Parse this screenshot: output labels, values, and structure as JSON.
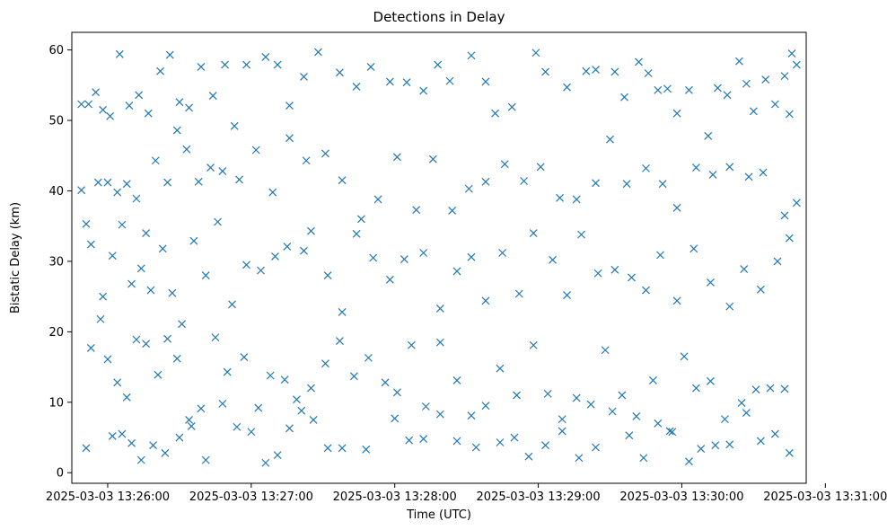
{
  "chart_data": {
    "type": "scatter",
    "title": "Detections in Delay",
    "xlabel": "Time (UTC)",
    "ylabel": "Bistatic Delay (km)",
    "x_type": "datetime",
    "xlim": [
      "2025-03-03 13:25:45",
      "2025-03-03 13:30:52"
    ],
    "ylim": [
      -1.5,
      62.5
    ],
    "x_ticks": [
      {
        "value": "2025-03-03 13:26:00",
        "label": "2025-03-03 13:26:00"
      },
      {
        "value": "2025-03-03 13:27:00",
        "label": "2025-03-03 13:27:00"
      },
      {
        "value": "2025-03-03 13:28:00",
        "label": "2025-03-03 13:28:00"
      },
      {
        "value": "2025-03-03 13:29:00",
        "label": "2025-03-03 13:29:00"
      },
      {
        "value": "2025-03-03 13:30:00",
        "label": "2025-03-03 13:30:00"
      },
      {
        "value": "2025-03-03 13:31:00",
        "label": "2025-03-03 13:31:00"
      }
    ],
    "y_ticks": [
      0,
      10,
      20,
      30,
      40,
      50,
      60
    ],
    "grid": false,
    "legend": false,
    "marker": "x",
    "color": "#1f77b4",
    "points": [
      [
        "2025-03-03 13:25:49",
        52.3
      ],
      [
        "2025-03-03 13:25:52",
        52.3
      ],
      [
        "2025-03-03 13:25:55",
        54.0
      ],
      [
        "2025-03-03 13:25:58",
        51.5
      ],
      [
        "2025-03-03 13:26:01",
        50.6
      ],
      [
        "2025-03-03 13:26:05",
        59.4
      ],
      [
        "2025-03-03 13:26:09",
        52.1
      ],
      [
        "2025-03-03 13:26:13",
        53.6
      ],
      [
        "2025-03-03 13:26:17",
        51.0
      ],
      [
        "2025-03-03 13:26:22",
        57.0
      ],
      [
        "2025-03-03 13:26:26",
        59.3
      ],
      [
        "2025-03-03 13:26:30",
        52.6
      ],
      [
        "2025-03-03 13:26:34",
        51.8
      ],
      [
        "2025-03-03 13:26:39",
        57.6
      ],
      [
        "2025-03-03 13:26:44",
        53.5
      ],
      [
        "2025-03-03 13:26:49",
        57.9
      ],
      [
        "2025-03-03 13:26:53",
        49.2
      ],
      [
        "2025-03-03 13:26:58",
        57.9
      ],
      [
        "2025-03-03 13:27:06",
        59.0
      ],
      [
        "2025-03-03 13:27:11",
        57.9
      ],
      [
        "2025-03-03 13:27:16",
        52.1
      ],
      [
        "2025-03-03 13:27:22",
        56.2
      ],
      [
        "2025-03-03 13:27:28",
        59.7
      ],
      [
        "2025-03-03 13:27:37",
        56.8
      ],
      [
        "2025-03-03 13:27:44",
        54.8
      ],
      [
        "2025-03-03 13:27:50",
        57.6
      ],
      [
        "2025-03-03 13:27:58",
        55.5
      ],
      [
        "2025-03-03 13:28:05",
        55.4
      ],
      [
        "2025-03-03 13:28:12",
        54.2
      ],
      [
        "2025-03-03 13:28:18",
        57.9
      ],
      [
        "2025-03-03 13:28:23",
        55.6
      ],
      [
        "2025-03-03 13:28:32",
        59.2
      ],
      [
        "2025-03-03 13:28:38",
        55.5
      ],
      [
        "2025-03-03 13:28:42",
        51.0
      ],
      [
        "2025-03-03 13:28:49",
        51.9
      ],
      [
        "2025-03-03 13:28:59",
        59.6
      ],
      [
        "2025-03-03 13:29:03",
        56.9
      ],
      [
        "2025-03-03 13:29:12",
        54.7
      ],
      [
        "2025-03-03 13:29:20",
        57.0
      ],
      [
        "2025-03-03 13:29:24",
        57.2
      ],
      [
        "2025-03-03 13:29:32",
        56.9
      ],
      [
        "2025-03-03 13:29:36",
        53.3
      ],
      [
        "2025-03-03 13:29:42",
        58.3
      ],
      [
        "2025-03-03 13:29:46",
        56.7
      ],
      [
        "2025-03-03 13:29:50",
        54.3
      ],
      [
        "2025-03-03 13:29:54",
        54.5
      ],
      [
        "2025-03-03 13:29:58",
        51.0
      ],
      [
        "2025-03-03 13:30:03",
        54.3
      ],
      [
        "2025-03-03 13:30:11",
        47.8
      ],
      [
        "2025-03-03 13:30:15",
        54.6
      ],
      [
        "2025-03-03 13:30:19",
        53.6
      ],
      [
        "2025-03-03 13:30:24",
        58.4
      ],
      [
        "2025-03-03 13:30:27",
        55.2
      ],
      [
        "2025-03-03 13:30:30",
        51.3
      ],
      [
        "2025-03-03 13:30:35",
        55.8
      ],
      [
        "2025-03-03 13:30:39",
        52.3
      ],
      [
        "2025-03-03 13:30:43",
        56.3
      ],
      [
        "2025-03-03 13:30:46",
        59.5
      ],
      [
        "2025-03-03 13:30:48",
        57.9
      ],
      [
        "2025-03-03 13:30:45",
        50.9
      ],
      [
        "2025-03-03 13:25:49",
        40.1
      ],
      [
        "2025-03-03 13:25:53",
        32.4
      ],
      [
        "2025-03-03 13:25:56",
        41.2
      ],
      [
        "2025-03-03 13:26:00",
        41.2
      ],
      [
        "2025-03-03 13:26:04",
        39.8
      ],
      [
        "2025-03-03 13:26:08",
        41.0
      ],
      [
        "2025-03-03 13:26:12",
        38.9
      ],
      [
        "2025-03-03 13:26:16",
        34.0
      ],
      [
        "2025-03-03 13:26:20",
        44.3
      ],
      [
        "2025-03-03 13:26:25",
        41.2
      ],
      [
        "2025-03-03 13:26:29",
        48.6
      ],
      [
        "2025-03-03 13:26:33",
        45.9
      ],
      [
        "2025-03-03 13:26:38",
        41.3
      ],
      [
        "2025-03-03 13:26:43",
        43.3
      ],
      [
        "2025-03-03 13:26:48",
        42.8
      ],
      [
        "2025-03-03 13:26:55",
        41.6
      ],
      [
        "2025-03-03 13:27:02",
        45.8
      ],
      [
        "2025-03-03 13:27:09",
        39.8
      ],
      [
        "2025-03-03 13:27:16",
        47.5
      ],
      [
        "2025-03-03 13:27:23",
        44.3
      ],
      [
        "2025-03-03 13:27:31",
        45.3
      ],
      [
        "2025-03-03 13:27:38",
        41.5
      ],
      [
        "2025-03-03 13:27:46",
        36.0
      ],
      [
        "2025-03-03 13:27:53",
        38.8
      ],
      [
        "2025-03-03 13:28:01",
        44.8
      ],
      [
        "2025-03-03 13:28:09",
        37.3
      ],
      [
        "2025-03-03 13:28:16",
        44.5
      ],
      [
        "2025-03-03 13:28:24",
        37.2
      ],
      [
        "2025-03-03 13:28:31",
        40.3
      ],
      [
        "2025-03-03 13:28:38",
        41.3
      ],
      [
        "2025-03-03 13:28:46",
        43.8
      ],
      [
        "2025-03-03 13:28:54",
        41.4
      ],
      [
        "2025-03-03 13:29:01",
        43.4
      ],
      [
        "2025-03-03 13:29:09",
        39.0
      ],
      [
        "2025-03-03 13:29:16",
        38.8
      ],
      [
        "2025-03-03 13:29:24",
        41.1
      ],
      [
        "2025-03-03 13:29:30",
        47.3
      ],
      [
        "2025-03-03 13:29:37",
        41.0
      ],
      [
        "2025-03-03 13:29:45",
        43.2
      ],
      [
        "2025-03-03 13:29:52",
        41.0
      ],
      [
        "2025-03-03 13:29:58",
        37.6
      ],
      [
        "2025-03-03 13:30:06",
        43.3
      ],
      [
        "2025-03-03 13:30:13",
        42.3
      ],
      [
        "2025-03-03 13:30:20",
        43.4
      ],
      [
        "2025-03-03 13:30:28",
        42.0
      ],
      [
        "2025-03-03 13:30:34",
        42.6
      ],
      [
        "2025-03-03 13:30:43",
        36.5
      ],
      [
        "2025-03-03 13:30:48",
        38.3
      ],
      [
        "2025-03-03 13:25:51",
        35.3
      ],
      [
        "2025-03-03 13:25:58",
        25.0
      ],
      [
        "2025-03-03 13:26:02",
        30.8
      ],
      [
        "2025-03-03 13:26:06",
        35.2
      ],
      [
        "2025-03-03 13:26:10",
        26.8
      ],
      [
        "2025-03-03 13:26:14",
        29.0
      ],
      [
        "2025-03-03 13:26:18",
        25.9
      ],
      [
        "2025-03-03 13:26:23",
        31.8
      ],
      [
        "2025-03-03 13:26:27",
        25.5
      ],
      [
        "2025-03-03 13:26:31",
        21.1
      ],
      [
        "2025-03-03 13:26:36",
        32.9
      ],
      [
        "2025-03-03 13:26:41",
        28.0
      ],
      [
        "2025-03-03 13:26:46",
        35.6
      ],
      [
        "2025-03-03 13:26:52",
        23.9
      ],
      [
        "2025-03-03 13:26:58",
        29.5
      ],
      [
        "2025-03-03 13:27:04",
        28.7
      ],
      [
        "2025-03-03 13:27:10",
        30.7
      ],
      [
        "2025-03-03 13:27:15",
        32.1
      ],
      [
        "2025-03-03 13:27:22",
        31.5
      ],
      [
        "2025-03-03 13:27:25",
        34.3
      ],
      [
        "2025-03-03 13:27:32",
        28.0
      ],
      [
        "2025-03-03 13:27:38",
        22.8
      ],
      [
        "2025-03-03 13:27:44",
        33.9
      ],
      [
        "2025-03-03 13:27:51",
        30.5
      ],
      [
        "2025-03-03 13:27:58",
        27.4
      ],
      [
        "2025-03-03 13:28:04",
        30.3
      ],
      [
        "2025-03-03 13:28:12",
        31.2
      ],
      [
        "2025-03-03 13:28:19",
        23.3
      ],
      [
        "2025-03-03 13:28:26",
        28.6
      ],
      [
        "2025-03-03 13:28:32",
        30.6
      ],
      [
        "2025-03-03 13:28:38",
        24.4
      ],
      [
        "2025-03-03 13:28:45",
        31.2
      ],
      [
        "2025-03-03 13:28:52",
        25.4
      ],
      [
        "2025-03-03 13:28:58",
        34.0
      ],
      [
        "2025-03-03 13:29:06",
        30.2
      ],
      [
        "2025-03-03 13:29:12",
        25.2
      ],
      [
        "2025-03-03 13:29:18",
        33.8
      ],
      [
        "2025-03-03 13:29:25",
        28.3
      ],
      [
        "2025-03-03 13:29:32",
        28.8
      ],
      [
        "2025-03-03 13:29:39",
        27.7
      ],
      [
        "2025-03-03 13:29:45",
        25.9
      ],
      [
        "2025-03-03 13:29:51",
        30.9
      ],
      [
        "2025-03-03 13:29:58",
        24.4
      ],
      [
        "2025-03-03 13:30:05",
        31.8
      ],
      [
        "2025-03-03 13:30:12",
        27.0
      ],
      [
        "2025-03-03 13:30:20",
        23.6
      ],
      [
        "2025-03-03 13:30:26",
        28.9
      ],
      [
        "2025-03-03 13:30:33",
        26.0
      ],
      [
        "2025-03-03 13:30:40",
        30.0
      ],
      [
        "2025-03-03 13:30:45",
        33.3
      ],
      [
        "2025-03-03 13:25:53",
        17.7
      ],
      [
        "2025-03-03 13:25:57",
        21.8
      ],
      [
        "2025-03-03 13:26:00",
        16.1
      ],
      [
        "2025-03-03 13:26:04",
        12.8
      ],
      [
        "2025-03-03 13:26:08",
        10.7
      ],
      [
        "2025-03-03 13:26:12",
        18.9
      ],
      [
        "2025-03-03 13:26:16",
        18.3
      ],
      [
        "2025-03-03 13:26:21",
        13.9
      ],
      [
        "2025-03-03 13:26:25",
        19.0
      ],
      [
        "2025-03-03 13:26:29",
        16.2
      ],
      [
        "2025-03-03 13:26:34",
        7.5
      ],
      [
        "2025-03-03 13:26:39",
        9.1
      ],
      [
        "2025-03-03 13:26:45",
        19.2
      ],
      [
        "2025-03-03 13:26:50",
        14.3
      ],
      [
        "2025-03-03 13:26:57",
        16.4
      ],
      [
        "2025-03-03 13:27:03",
        9.2
      ],
      [
        "2025-03-03 13:27:08",
        13.8
      ],
      [
        "2025-03-03 13:27:14",
        13.2
      ],
      [
        "2025-03-03 13:27:19",
        10.4
      ],
      [
        "2025-03-03 13:27:25",
        12.0
      ],
      [
        "2025-03-03 13:27:31",
        15.5
      ],
      [
        "2025-03-03 13:27:37",
        18.7
      ],
      [
        "2025-03-03 13:27:43",
        13.7
      ],
      [
        "2025-03-03 13:27:49",
        16.3
      ],
      [
        "2025-03-03 13:27:56",
        12.8
      ],
      [
        "2025-03-03 13:28:01",
        11.4
      ],
      [
        "2025-03-03 13:28:07",
        18.1
      ],
      [
        "2025-03-03 13:28:13",
        9.4
      ],
      [
        "2025-03-03 13:28:19",
        18.5
      ],
      [
        "2025-03-03 13:28:26",
        13.1
      ],
      [
        "2025-03-03 13:28:32",
        8.1
      ],
      [
        "2025-03-03 13:28:38",
        9.5
      ],
      [
        "2025-03-03 13:28:44",
        14.8
      ],
      [
        "2025-03-03 13:28:51",
        11.0
      ],
      [
        "2025-03-03 13:28:58",
        18.1
      ],
      [
        "2025-03-03 13:29:04",
        11.2
      ],
      [
        "2025-03-03 13:29:10",
        7.6
      ],
      [
        "2025-03-03 13:29:16",
        10.6
      ],
      [
        "2025-03-03 13:29:22",
        9.7
      ],
      [
        "2025-03-03 13:29:28",
        17.4
      ],
      [
        "2025-03-03 13:29:35",
        11.0
      ],
      [
        "2025-03-03 13:29:41",
        8.0
      ],
      [
        "2025-03-03 13:29:48",
        13.1
      ],
      [
        "2025-03-03 13:29:55",
        5.9
      ],
      [
        "2025-03-03 13:30:01",
        16.5
      ],
      [
        "2025-03-03 13:30:06",
        12.0
      ],
      [
        "2025-03-03 13:30:12",
        13.0
      ],
      [
        "2025-03-03 13:30:18",
        7.6
      ],
      [
        "2025-03-03 13:30:25",
        9.9
      ],
      [
        "2025-03-03 13:30:31",
        11.8
      ],
      [
        "2025-03-03 13:30:37",
        12.0
      ],
      [
        "2025-03-03 13:30:43",
        11.9
      ],
      [
        "2025-03-03 13:25:51",
        3.5
      ],
      [
        "2025-03-03 13:26:02",
        5.2
      ],
      [
        "2025-03-03 13:26:06",
        5.5
      ],
      [
        "2025-03-03 13:26:10",
        4.2
      ],
      [
        "2025-03-03 13:26:14",
        1.8
      ],
      [
        "2025-03-03 13:26:19",
        3.9
      ],
      [
        "2025-03-03 13:26:24",
        2.8
      ],
      [
        "2025-03-03 13:26:30",
        5.0
      ],
      [
        "2025-03-03 13:26:35",
        6.6
      ],
      [
        "2025-03-03 13:26:41",
        1.8
      ],
      [
        "2025-03-03 13:26:48",
        9.8
      ],
      [
        "2025-03-03 13:26:54",
        6.5
      ],
      [
        "2025-03-03 13:27:00",
        5.8
      ],
      [
        "2025-03-03 13:27:06",
        1.4
      ],
      [
        "2025-03-03 13:27:11",
        2.5
      ],
      [
        "2025-03-03 13:27:16",
        6.3
      ],
      [
        "2025-03-03 13:27:21",
        8.8
      ],
      [
        "2025-03-03 13:27:26",
        7.5
      ],
      [
        "2025-03-03 13:27:32",
        3.5
      ],
      [
        "2025-03-03 13:27:38",
        3.5
      ],
      [
        "2025-03-03 13:27:48",
        3.3
      ],
      [
        "2025-03-03 13:28:00",
        7.7
      ],
      [
        "2025-03-03 13:28:06",
        4.6
      ],
      [
        "2025-03-03 13:28:12",
        4.8
      ],
      [
        "2025-03-03 13:28:19",
        8.3
      ],
      [
        "2025-03-03 13:28:26",
        4.5
      ],
      [
        "2025-03-03 13:28:34",
        3.6
      ],
      [
        "2025-03-03 13:28:44",
        4.3
      ],
      [
        "2025-03-03 13:28:50",
        5.0
      ],
      [
        "2025-03-03 13:28:56",
        2.3
      ],
      [
        "2025-03-03 13:29:03",
        3.9
      ],
      [
        "2025-03-03 13:29:10",
        5.9
      ],
      [
        "2025-03-03 13:29:17",
        2.1
      ],
      [
        "2025-03-03 13:29:24",
        3.6
      ],
      [
        "2025-03-03 13:29:31",
        8.7
      ],
      [
        "2025-03-03 13:29:38",
        5.3
      ],
      [
        "2025-03-03 13:29:44",
        2.1
      ],
      [
        "2025-03-03 13:29:50",
        7.0
      ],
      [
        "2025-03-03 13:29:56",
        5.8
      ],
      [
        "2025-03-03 13:30:03",
        1.6
      ],
      [
        "2025-03-03 13:30:08",
        3.4
      ],
      [
        "2025-03-03 13:30:14",
        3.9
      ],
      [
        "2025-03-03 13:30:20",
        4.0
      ],
      [
        "2025-03-03 13:30:27",
        8.5
      ],
      [
        "2025-03-03 13:30:33",
        4.5
      ],
      [
        "2025-03-03 13:30:39",
        5.5
      ],
      [
        "2025-03-03 13:30:45",
        2.8
      ]
    ]
  }
}
